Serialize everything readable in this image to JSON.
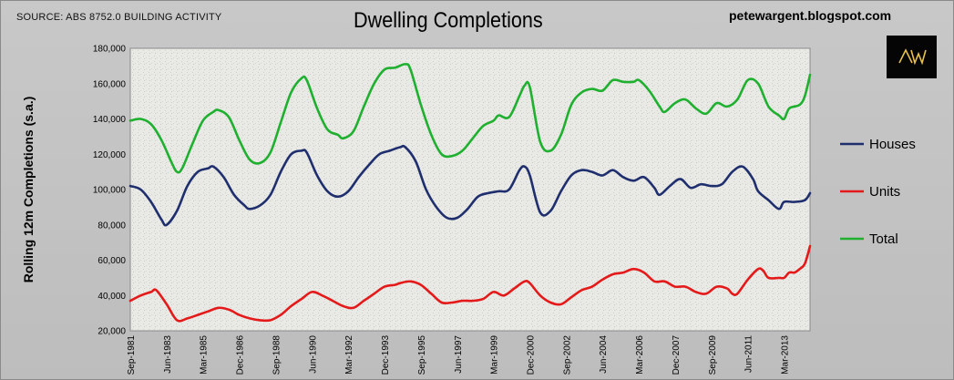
{
  "header": {
    "source": "SOURCE: ABS 8752.0 BUILDING ACTIVITY",
    "blog": "petewargent.blogspot.com",
    "logo_text": "AW"
  },
  "chart_data": {
    "type": "line",
    "title": "Dwelling Completions",
    "ylabel": "Rolling 12m Completions (s.a.)",
    "xlabel": "",
    "ylim": [
      20000,
      180000
    ],
    "yticks": [
      "20,000",
      "40,000",
      "60,000",
      "80,000",
      "100,000",
      "120,000",
      "140,000",
      "160,000",
      "180,000"
    ],
    "xticks": [
      "Sep-1981",
      "Jun-1983",
      "Mar-1985",
      "Dec-1986",
      "Sep-1988",
      "Jun-1990",
      "Mar-1992",
      "Dec-1993",
      "Sep-1995",
      "Jun-1997",
      "Mar-1999",
      "Dec-2000",
      "Sep-2002",
      "Jun-2004",
      "Mar-2006",
      "Dec-2007",
      "Sep-2009",
      "Jun-2011",
      "Mar-2013"
    ],
    "x_range": [
      "Sep-1981",
      "Jun-2014"
    ],
    "legend_position": "right",
    "grid": false,
    "series": [
      {
        "name": "Houses",
        "color": "#1f2f6e",
        "points": [
          [
            "Sep-1981",
            102000
          ],
          [
            "Mar-1982",
            100000
          ],
          [
            "Sep-1982",
            93000
          ],
          [
            "Mar-1983",
            83000
          ],
          [
            "Jun-1983",
            80000
          ],
          [
            "Dec-1983",
            88000
          ],
          [
            "Jun-1984",
            102000
          ],
          [
            "Dec-1984",
            110000
          ],
          [
            "Jun-1985",
            112000
          ],
          [
            "Sep-1985",
            113000
          ],
          [
            "Mar-1986",
            107000
          ],
          [
            "Sep-1986",
            97000
          ],
          [
            "Mar-1987",
            91000
          ],
          [
            "Jun-1987",
            89000
          ],
          [
            "Dec-1987",
            91000
          ],
          [
            "Jun-1988",
            97000
          ],
          [
            "Dec-1988",
            110000
          ],
          [
            "Jun-1989",
            120000
          ],
          [
            "Dec-1989",
            122000
          ],
          [
            "Mar-1990",
            121000
          ],
          [
            "Sep-1990",
            108000
          ],
          [
            "Mar-1991",
            99000
          ],
          [
            "Sep-1991",
            96000
          ],
          [
            "Mar-1992",
            99000
          ],
          [
            "Sep-1992",
            107000
          ],
          [
            "Mar-1993",
            114000
          ],
          [
            "Sep-1993",
            120000
          ],
          [
            "Mar-1994",
            122000
          ],
          [
            "Sep-1994",
            124000
          ],
          [
            "Dec-1994",
            124000
          ],
          [
            "Jun-1995",
            116000
          ],
          [
            "Dec-1995",
            100000
          ],
          [
            "Jun-1996",
            90000
          ],
          [
            "Dec-1996",
            84000
          ],
          [
            "Jun-1997",
            84000
          ],
          [
            "Dec-1997",
            89000
          ],
          [
            "Jun-1998",
            96000
          ],
          [
            "Dec-1998",
            98000
          ],
          [
            "Jun-1999",
            99000
          ],
          [
            "Dec-1999",
            100000
          ],
          [
            "Jun-2000",
            111000
          ],
          [
            "Sep-2000",
            113000
          ],
          [
            "Dec-2000",
            108000
          ],
          [
            "Jun-2001",
            87000
          ],
          [
            "Dec-2001",
            88000
          ],
          [
            "Jun-2002",
            99000
          ],
          [
            "Dec-2002",
            108000
          ],
          [
            "Jun-2003",
            111000
          ],
          [
            "Dec-2003",
            110000
          ],
          [
            "Jun-2004",
            108000
          ],
          [
            "Dec-2004",
            111000
          ],
          [
            "Jun-2005",
            107000
          ],
          [
            "Dec-2005",
            105000
          ],
          [
            "Jun-2006",
            107000
          ],
          [
            "Dec-2006",
            101000
          ],
          [
            "Mar-2007",
            97000
          ],
          [
            "Sep-2007",
            102000
          ],
          [
            "Mar-2008",
            106000
          ],
          [
            "Sep-2008",
            101000
          ],
          [
            "Mar-2009",
            103000
          ],
          [
            "Sep-2009",
            102000
          ],
          [
            "Mar-2010",
            103000
          ],
          [
            "Sep-2010",
            110000
          ],
          [
            "Mar-2011",
            113000
          ],
          [
            "Sep-2011",
            106000
          ],
          [
            "Dec-2011",
            99000
          ],
          [
            "Jun-2012",
            94000
          ],
          [
            "Dec-2012",
            89000
          ],
          [
            "Mar-2013",
            93000
          ],
          [
            "Sep-2013",
            93000
          ],
          [
            "Mar-2014",
            94000
          ],
          [
            "Jun-2014",
            98000
          ]
        ]
      },
      {
        "name": "Units",
        "color": "#e41a1a",
        "points": [
          [
            "Sep-1981",
            37000
          ],
          [
            "Mar-1982",
            40000
          ],
          [
            "Sep-1982",
            42000
          ],
          [
            "Dec-1982",
            43000
          ],
          [
            "Jun-1983",
            35000
          ],
          [
            "Dec-1983",
            26000
          ],
          [
            "Jun-1984",
            27000
          ],
          [
            "Dec-1984",
            29000
          ],
          [
            "Jun-1985",
            31000
          ],
          [
            "Dec-1985",
            33000
          ],
          [
            "Jun-1986",
            32000
          ],
          [
            "Dec-1986",
            29000
          ],
          [
            "Jun-1987",
            27000
          ],
          [
            "Dec-1987",
            26000
          ],
          [
            "Jun-1988",
            26000
          ],
          [
            "Dec-1988",
            29000
          ],
          [
            "Jun-1989",
            34000
          ],
          [
            "Dec-1989",
            38000
          ],
          [
            "Jun-1990",
            42000
          ],
          [
            "Dec-1990",
            40000
          ],
          [
            "Jun-1991",
            37000
          ],
          [
            "Dec-1991",
            34000
          ],
          [
            "Jun-1992",
            33000
          ],
          [
            "Dec-1992",
            37000
          ],
          [
            "Jun-1993",
            41000
          ],
          [
            "Dec-1993",
            45000
          ],
          [
            "Jun-1994",
            46000
          ],
          [
            "Sep-1994",
            47000
          ],
          [
            "Mar-1995",
            48000
          ],
          [
            "Sep-1995",
            46000
          ],
          [
            "Mar-1996",
            41000
          ],
          [
            "Sep-1996",
            36000
          ],
          [
            "Mar-1997",
            36000
          ],
          [
            "Sep-1997",
            37000
          ],
          [
            "Mar-1998",
            37000
          ],
          [
            "Sep-1998",
            38000
          ],
          [
            "Mar-1999",
            42000
          ],
          [
            "Sep-1999",
            40000
          ],
          [
            "Mar-2000",
            44000
          ],
          [
            "Sep-2000",
            48000
          ],
          [
            "Dec-2000",
            47000
          ],
          [
            "Jun-2001",
            40000
          ],
          [
            "Dec-2001",
            36000
          ],
          [
            "Jun-2002",
            35000
          ],
          [
            "Dec-2002",
            39000
          ],
          [
            "Jun-2003",
            43000
          ],
          [
            "Dec-2003",
            45000
          ],
          [
            "Jun-2004",
            49000
          ],
          [
            "Dec-2004",
            52000
          ],
          [
            "Jun-2005",
            53000
          ],
          [
            "Dec-2005",
            55000
          ],
          [
            "Jun-2006",
            53000
          ],
          [
            "Dec-2006",
            48000
          ],
          [
            "Jun-2007",
            48000
          ],
          [
            "Dec-2007",
            45000
          ],
          [
            "Jun-2008",
            45000
          ],
          [
            "Dec-2008",
            42000
          ],
          [
            "Jun-2009",
            41000
          ],
          [
            "Dec-2009",
            45000
          ],
          [
            "Jun-2010",
            44000
          ],
          [
            "Sep-2010",
            41000
          ],
          [
            "Dec-2010",
            41000
          ],
          [
            "Jun-2011",
            49000
          ],
          [
            "Dec-2011",
            55000
          ],
          [
            "Mar-2012",
            54000
          ],
          [
            "Jun-2012",
            50000
          ],
          [
            "Dec-2012",
            50000
          ],
          [
            "Mar-2013",
            50000
          ],
          [
            "Jun-2013",
            53000
          ],
          [
            "Sep-2013",
            53000
          ],
          [
            "Dec-2013",
            55000
          ],
          [
            "Mar-2014",
            58000
          ],
          [
            "Jun-2014",
            68000
          ]
        ]
      },
      {
        "name": "Total",
        "color": "#1fb02f",
        "points": [
          [
            "Sep-1981",
            139000
          ],
          [
            "Mar-1982",
            140000
          ],
          [
            "Sep-1982",
            137000
          ],
          [
            "Mar-1983",
            128000
          ],
          [
            "Sep-1983",
            115000
          ],
          [
            "Dec-1983",
            110000
          ],
          [
            "Mar-1984",
            112000
          ],
          [
            "Sep-1984",
            126000
          ],
          [
            "Mar-1985",
            139000
          ],
          [
            "Sep-1985",
            144000
          ],
          [
            "Dec-1985",
            145000
          ],
          [
            "Jun-1986",
            141000
          ],
          [
            "Dec-1986",
            128000
          ],
          [
            "Jun-1987",
            117000
          ],
          [
            "Dec-1987",
            115000
          ],
          [
            "Jun-1988",
            121000
          ],
          [
            "Dec-1988",
            138000
          ],
          [
            "Jun-1989",
            155000
          ],
          [
            "Dec-1989",
            163000
          ],
          [
            "Mar-1990",
            162000
          ],
          [
            "Sep-1990",
            146000
          ],
          [
            "Mar-1991",
            134000
          ],
          [
            "Sep-1991",
            131000
          ],
          [
            "Dec-1991",
            129000
          ],
          [
            "Jun-1992",
            133000
          ],
          [
            "Dec-1992",
            147000
          ],
          [
            "Jun-1993",
            160000
          ],
          [
            "Dec-1993",
            168000
          ],
          [
            "Jun-1994",
            169000
          ],
          [
            "Dec-1994",
            171000
          ],
          [
            "Mar-1995",
            168000
          ],
          [
            "Sep-1995",
            148000
          ],
          [
            "Mar-1996",
            131000
          ],
          [
            "Sep-1996",
            120000
          ],
          [
            "Mar-1997",
            119000
          ],
          [
            "Sep-1997",
            122000
          ],
          [
            "Mar-1998",
            129000
          ],
          [
            "Sep-1998",
            136000
          ],
          [
            "Mar-1999",
            139000
          ],
          [
            "Jun-1999",
            142000
          ],
          [
            "Dec-1999",
            141000
          ],
          [
            "Jun-2000",
            153000
          ],
          [
            "Sep-2000",
            159000
          ],
          [
            "Dec-2000",
            158000
          ],
          [
            "Jun-2001",
            127000
          ],
          [
            "Dec-2001",
            122000
          ],
          [
            "Jun-2002",
            131000
          ],
          [
            "Dec-2002",
            148000
          ],
          [
            "Jun-2003",
            155000
          ],
          [
            "Dec-2003",
            157000
          ],
          [
            "Jun-2004",
            156000
          ],
          [
            "Dec-2004",
            162000
          ],
          [
            "Jun-2005",
            161000
          ],
          [
            "Dec-2005",
            161000
          ],
          [
            "Mar-2006",
            162000
          ],
          [
            "Sep-2006",
            156000
          ],
          [
            "Mar-2007",
            147000
          ],
          [
            "Jun-2007",
            144000
          ],
          [
            "Dec-2007",
            149000
          ],
          [
            "Jun-2008",
            151000
          ],
          [
            "Dec-2008",
            146000
          ],
          [
            "Jun-2009",
            143000
          ],
          [
            "Dec-2009",
            149000
          ],
          [
            "Jun-2010",
            147000
          ],
          [
            "Dec-2010",
            151000
          ],
          [
            "Jun-2011",
            162000
          ],
          [
            "Dec-2011",
            160000
          ],
          [
            "Jun-2012",
            147000
          ],
          [
            "Dec-2012",
            142000
          ],
          [
            "Mar-2013",
            140000
          ],
          [
            "Jun-2013",
            146000
          ],
          [
            "Dec-2013",
            148000
          ],
          [
            "Mar-2014",
            153000
          ],
          [
            "Jun-2014",
            165000
          ]
        ]
      }
    ]
  }
}
